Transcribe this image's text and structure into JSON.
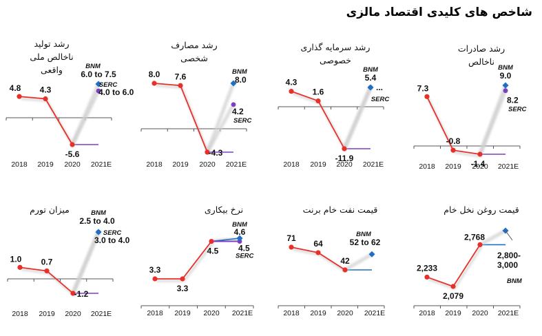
{
  "page": {
    "title": "شاخص های کلیدی اقتصاد مالزی"
  },
  "colors": {
    "actual": "#e8302a",
    "bnm": "#1f6fc4",
    "serc": "#7b3fc4",
    "projection_shadow": "#cfcfcf",
    "axis": "#555555"
  },
  "chart_data": [
    {
      "type": "line",
      "title": "رشد تولید ناخالص ملی واقعی",
      "title_lines": [
        "رشد تولید",
        "ناخالص ملی",
        "واقعی"
      ],
      "categories": [
        "2018",
        "2019",
        "2020",
        "2021E"
      ],
      "series": [
        {
          "name": "Actual",
          "values": [
            4.8,
            4.3,
            -5.6,
            null
          ],
          "labels": [
            "4.8",
            "4.3",
            "-5.6"
          ]
        },
        {
          "name": "BNM",
          "forecast": [
            6.0,
            7.5
          ],
          "label": "6.0 to 7.5"
        },
        {
          "name": "SERC",
          "forecast": [
            4.0,
            6.0
          ],
          "label": "4.0 to 6.0"
        }
      ],
      "ylim": [
        -7,
        8
      ]
    },
    {
      "type": "line",
      "title": "رشد مصارف شخصی",
      "title_lines": [
        "رشد مصارف",
        "شخصی"
      ],
      "categories": [
        "2018",
        "2019",
        "2020",
        "2021E"
      ],
      "series": [
        {
          "name": "Actual",
          "values": [
            8.0,
            7.6,
            -4.3,
            null
          ],
          "labels": [
            "8.0",
            "7.6",
            "-4.3"
          ]
        },
        {
          "name": "BNM",
          "forecast": [
            8.0
          ],
          "label": "8.0"
        },
        {
          "name": "SERC",
          "forecast": [
            4.2
          ],
          "label": "4.2"
        }
      ],
      "ylim": [
        -5,
        9
      ]
    },
    {
      "type": "line",
      "title": "رشد سرمایه گذاری خصوصی",
      "title_lines": [
        "رشد سرمایه گذاری",
        "خصوصی"
      ],
      "categories": [
        "2018",
        "2019",
        "2020",
        "2021E"
      ],
      "series": [
        {
          "name": "Actual",
          "values": [
            4.3,
            1.6,
            -11.9,
            null
          ],
          "labels": [
            "4.3",
            "1.6",
            "-11.9"
          ]
        },
        {
          "name": "BNM",
          "forecast": [
            5.4
          ],
          "label": "5.4"
        },
        {
          "name": "SERC",
          "forecast": [
            5.4
          ],
          "label": "..."
        }
      ],
      "ylim": [
        -13,
        7
      ]
    },
    {
      "type": "line",
      "title": "رشد صادرات ناخالص",
      "title_lines": [
        "رشد صادرات",
        "ناخالص"
      ],
      "categories": [
        "2018",
        "2019",
        "2020",
        "2021E"
      ],
      "series": [
        {
          "name": "Actual",
          "values": [
            7.3,
            -0.8,
            -1.4,
            null
          ],
          "labels": [
            "7.3",
            "-0.8",
            "-1.4"
          ]
        },
        {
          "name": "BNM",
          "forecast": [
            9.0
          ],
          "label": "9.0"
        },
        {
          "name": "SERC",
          "forecast": [
            8.2
          ],
          "label": "8.2"
        }
      ],
      "ylim": [
        -2,
        10
      ]
    },
    {
      "type": "line",
      "title": "میزان تورم",
      "title_lines": [
        "میزان تورم"
      ],
      "categories": [
        "2018",
        "2019",
        "2020",
        "2021E"
      ],
      "series": [
        {
          "name": "Actual",
          "values": [
            1.0,
            0.7,
            -1.2,
            null
          ],
          "labels": [
            "1.0",
            "0.7",
            "-1.2"
          ]
        },
        {
          "name": "BNM",
          "forecast": [
            2.5,
            4.0
          ],
          "label": "2.5 to 4.0"
        },
        {
          "name": "SERC",
          "forecast": [
            3.0,
            4.0
          ],
          "label": "3.0 to 4.0"
        }
      ],
      "ylim": [
        -2,
        5
      ]
    },
    {
      "type": "line",
      "title": "نرخ بیکاری",
      "title_lines": [
        "نرخ بیکاری"
      ],
      "categories": [
        "2018",
        "2019",
        "2020",
        "2021E"
      ],
      "series": [
        {
          "name": "Actual",
          "values": [
            3.3,
            3.3,
            4.5,
            null
          ],
          "labels": [
            "3.3",
            "3.3",
            "4.5"
          ]
        },
        {
          "name": "BNM",
          "forecast": [
            4.6
          ],
          "label": "4.6"
        },
        {
          "name": "SERC",
          "forecast": [
            4.5
          ],
          "label": "4.5"
        }
      ],
      "ylim": [
        2.5,
        5
      ]
    },
    {
      "type": "line",
      "title": "قیمت نفت خام برنت",
      "title_lines": [
        "قیمت نفت خام برنت"
      ],
      "categories": [
        "2018",
        "2019",
        "2020",
        "2021E"
      ],
      "series": [
        {
          "name": "Actual",
          "values": [
            71,
            64,
            42,
            null
          ],
          "labels": [
            "71",
            "64",
            "42"
          ]
        },
        {
          "name": "BNM",
          "forecast": [
            52,
            62
          ],
          "label": "52 to 62"
        }
      ],
      "ylim": [
        0,
        90
      ]
    },
    {
      "type": "line",
      "title": "قیمت روغن نخل خام",
      "title_lines": [
        "قیمت روغن نخل خام"
      ],
      "categories": [
        "2018",
        "2019",
        "2020",
        "2021E"
      ],
      "series": [
        {
          "name": "Actual",
          "values": [
            2233,
            2079,
            2768,
            null
          ],
          "labels": [
            "2,233",
            "2,079",
            "2,768"
          ]
        },
        {
          "name": "BNM",
          "forecast": [
            2800,
            3000
          ],
          "label": "2,800-\n3,000"
        }
      ],
      "ylim": [
        1800,
        3100
      ]
    }
  ],
  "labels": {
    "bnm": "BNM",
    "serc": "SERC"
  }
}
